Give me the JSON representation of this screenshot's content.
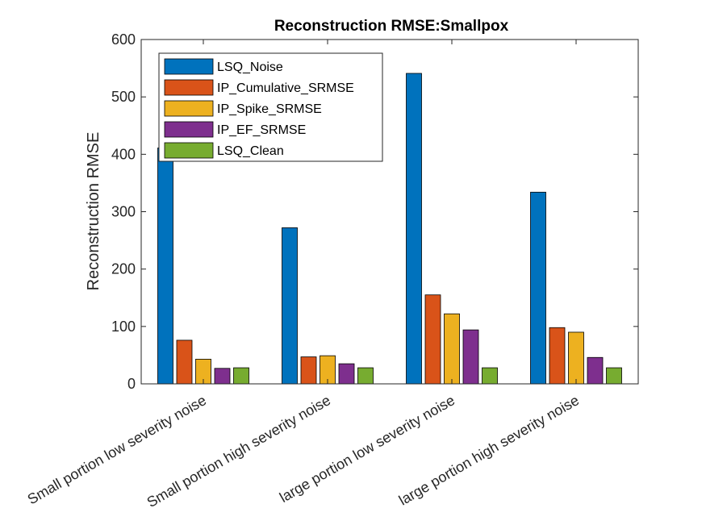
{
  "chart_data": {
    "type": "bar",
    "title": "Reconstruction RMSE:Smallpox",
    "xlabel": "",
    "ylabel": "Reconstruction RMSE",
    "ylim": [
      0,
      600
    ],
    "yticks": [
      0,
      100,
      200,
      300,
      400,
      500,
      600
    ],
    "grid": false,
    "legend_position": "top-left",
    "categories": [
      "Small portion low severity noise",
      "Small portion high severity noise",
      "large portion low severity noise",
      "large portion high severity noise"
    ],
    "series": [
      {
        "name": "LSQ_Noise",
        "color": "#0072BD",
        "values": [
          411,
          272,
          541,
          334
        ]
      },
      {
        "name": "IP_Cumulative_SRMSE",
        "color": "#D95319",
        "values": [
          76,
          47,
          155,
          98
        ]
      },
      {
        "name": "IP_Spike_SRMSE",
        "color": "#EDB120",
        "values": [
          43,
          49,
          122,
          90
        ]
      },
      {
        "name": "IP_EF_SRMSE",
        "color": "#7E2F8E",
        "values": [
          27,
          35,
          94,
          46
        ]
      },
      {
        "name": "LSQ_Clean",
        "color": "#77AC30",
        "values": [
          28,
          28,
          28,
          28
        ]
      }
    ]
  }
}
